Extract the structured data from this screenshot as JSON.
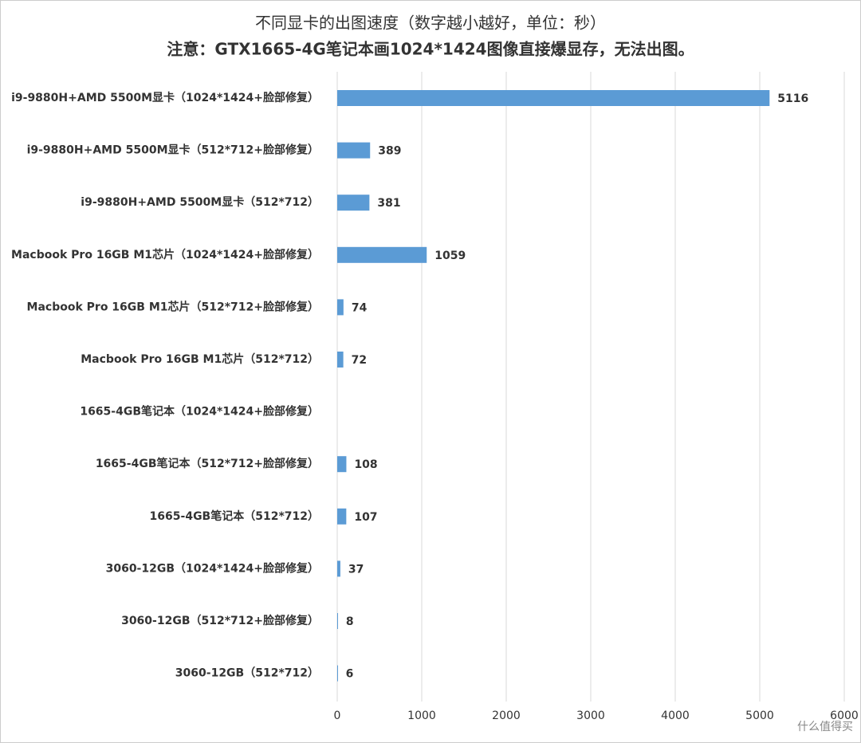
{
  "chart_data": {
    "type": "hbar",
    "title": "不同显卡的出图速度（数字越小越好，单位：秒）",
    "subtitle": "注意：GTX1665-4G笔记本画1024*1424图像直接爆显存，无法出图。",
    "categories": [
      "i9-9880H+AMD 5500M显卡（1024*1424+脸部修复）",
      "i9-9880H+AMD 5500M显卡（512*712+脸部修复）",
      "i9-9880H+AMD 5500M显卡（512*712）",
      "Macbook Pro 16GB M1芯片（1024*1424+脸部修复）",
      "Macbook Pro 16GB M1芯片（512*712+脸部修复）",
      "Macbook Pro 16GB M1芯片（512*712）",
      "1665-4GB笔记本（1024*1424+脸部修复）",
      "1665-4GB笔记本（512*712+脸部修复）",
      "1665-4GB笔记本（512*712）",
      "3060-12GB（1024*1424+脸部修复）",
      "3060-12GB（512*712+脸部修复）",
      "3060-12GB（512*712）"
    ],
    "values": [
      5116,
      389,
      381,
      1059,
      74,
      72,
      null,
      108,
      107,
      37,
      8,
      6
    ],
    "color": "#5b9bd5",
    "xlim": [
      0,
      6000
    ],
    "xticks": [
      0,
      1000,
      2000,
      3000,
      4000,
      5000,
      6000
    ],
    "grid": true
  },
  "watermark": "什么值得买"
}
